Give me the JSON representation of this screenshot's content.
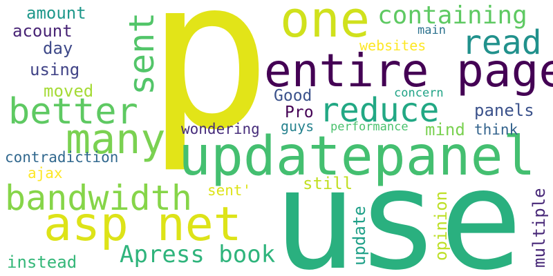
{
  "words": {
    "p": {
      "text": "p",
      "color": "#e2e418"
    },
    "use": {
      "text": "use",
      "color": "#2ab07f"
    },
    "updatepanel": {
      "text": "updatepanel",
      "color": "#44bf70"
    },
    "entire_page": {
      "text": "entire page",
      "color": "#440154"
    },
    "one": {
      "text": "one",
      "color": "#d0e11c"
    },
    "asp_net": {
      "text": "asp net",
      "color": "#dde318"
    },
    "bandwidth": {
      "text": "bandwidth",
      "color": "#86d549"
    },
    "many": {
      "text": "many",
      "color": "#7ad151"
    },
    "better": {
      "text": "better",
      "color": "#5ec962"
    },
    "reduce": {
      "text": "reduce",
      "color": "#22a884"
    },
    "sent": {
      "text": "sent",
      "color": "#52c569"
    },
    "read": {
      "text": "read",
      "color": "#21918c"
    },
    "containing": {
      "text": "containing",
      "color": "#5ec962"
    },
    "apress_book": {
      "text": "Apress book",
      "color": "#2fb47c"
    },
    "amount": {
      "text": "amount",
      "color": "#1f988b"
    },
    "acount": {
      "text": "acount",
      "color": "#482475"
    },
    "day": {
      "text": "day",
      "color": "#3e4989"
    },
    "using": {
      "text": "using",
      "color": "#414487"
    },
    "moved": {
      "text": "moved",
      "color": "#a5db36"
    },
    "contradiction": {
      "text": "contradiction",
      "color": "#31688e"
    },
    "ajax": {
      "text": "ajax",
      "color": "#fde725"
    },
    "instead": {
      "text": "instead",
      "color": "#35b779"
    },
    "websites": {
      "text": "websites",
      "color": "#fde725"
    },
    "main": {
      "text": "main",
      "color": "#2c728e"
    },
    "good": {
      "text": "Good",
      "color": "#3b528b"
    },
    "pro": {
      "text": "Pro",
      "color": "#440154"
    },
    "concern": {
      "text": "concern",
      "color": "#20a386"
    },
    "panels": {
      "text": "panels",
      "color": "#3b528b"
    },
    "mind": {
      "text": "mind",
      "color": "#7ad151"
    },
    "think": {
      "text": "think",
      "color": "#33638d"
    },
    "guys": {
      "text": "guys",
      "color": "#26828e"
    },
    "performance": {
      "text": "performance",
      "color": "#4ac16d"
    },
    "wondering": {
      "text": "wondering",
      "color": "#472d7b"
    },
    "still": {
      "text": "still",
      "color": "#c2df23"
    },
    "sent_quote": {
      "text": "sent'",
      "color": "#dde318"
    },
    "update": {
      "text": "update",
      "color": "#1fa088"
    },
    "opinion": {
      "text": "opinion",
      "color": "#bddf26"
    },
    "multiple": {
      "text": "multiple",
      "color": "#482878"
    }
  }
}
